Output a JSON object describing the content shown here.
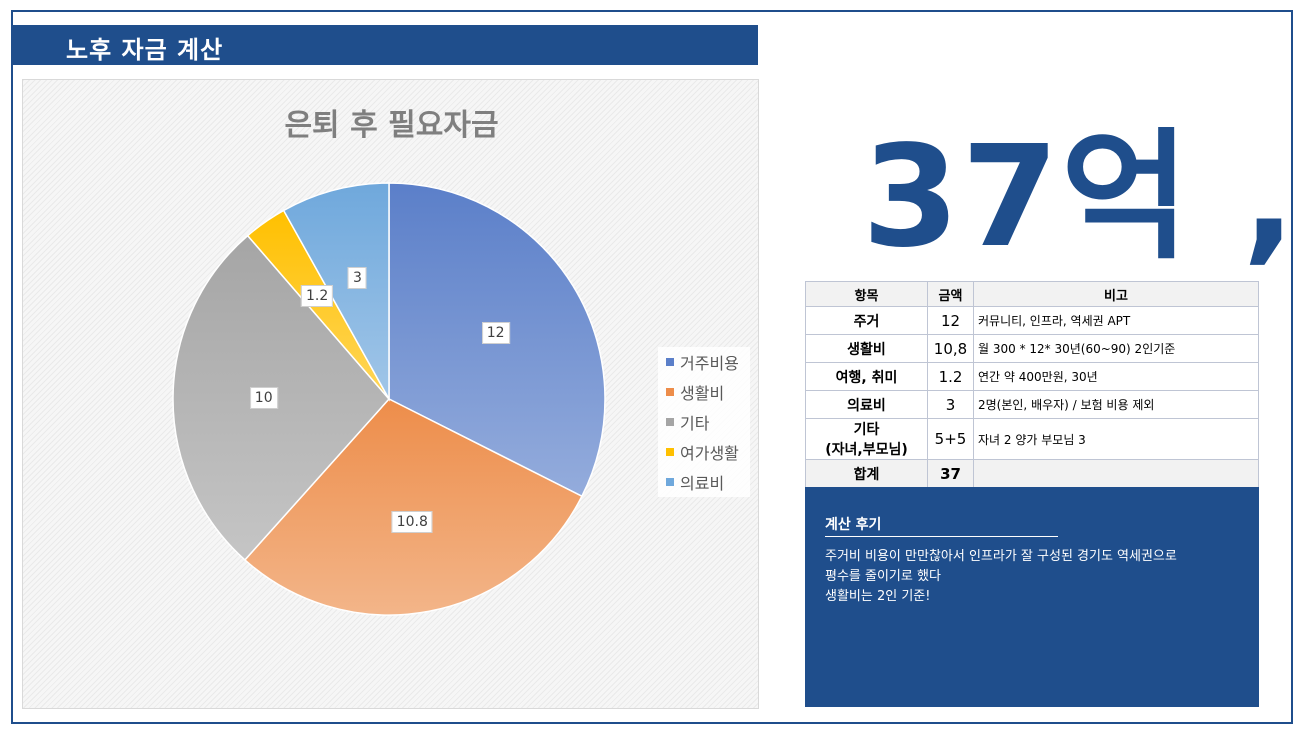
{
  "header": {
    "title": "노후 자금 계산"
  },
  "chart_data": {
    "type": "pie",
    "title": "은퇴 후 필요자금",
    "categories": [
      "거주비용",
      "생활비",
      "기타",
      "여가생활",
      "의료비"
    ],
    "values": [
      12,
      10.8,
      10,
      1.2,
      3
    ],
    "data_labels": [
      "12",
      "10.8",
      "10",
      "1.2",
      "3"
    ],
    "colors": [
      "#5b7fc9",
      "#ed8d4a",
      "#a5a5a5",
      "#ffc000",
      "#6fa8dc"
    ],
    "legend_position": "right"
  },
  "total_display": "37억 ,",
  "table": {
    "headers": [
      "항목",
      "금액",
      "비고"
    ],
    "rows": [
      {
        "item": "주거",
        "amount": "12",
        "note": "커뮤니티, 인프라, 역세권 APT"
      },
      {
        "item": "생활비",
        "amount": "10,8",
        "note": "월 300 * 12* 30년(60~90) 2인기준"
      },
      {
        "item": "여행, 취미",
        "amount": "1.2",
        "note": "연간 약 400만원, 30년"
      },
      {
        "item": "의료비",
        "amount": "3",
        "note": "2명(본인, 배우자) / 보험 비용 제외"
      },
      {
        "item_line1": "기타",
        "item_line2": "(자녀,부모님)",
        "amount": "5+5",
        "note": "자녀 2 양가 부모님 3"
      }
    ],
    "total": {
      "item": "합계",
      "amount": "37",
      "note": ""
    }
  },
  "review": {
    "title": "계산 후기",
    "lines": [
      "주거비 비용이 만만찮아서 인프라가 잘 구성된 경기도 역세권으로",
      "평수를 줄이기로 했다",
      "생활비는 2인 기준!"
    ]
  }
}
